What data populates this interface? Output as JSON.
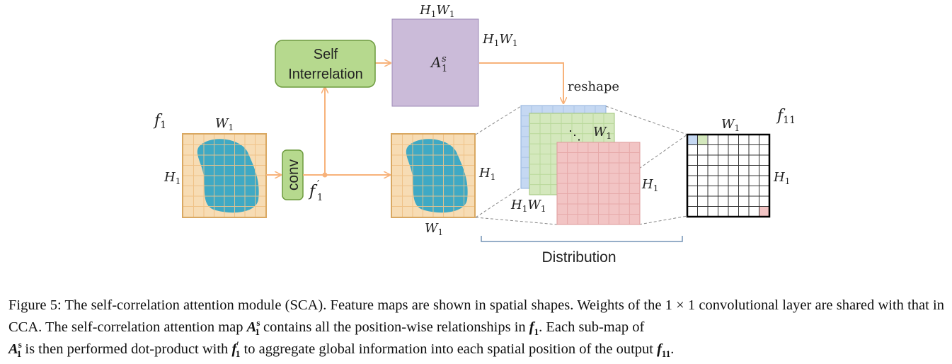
{
  "labels": {
    "f1": "f",
    "f1_sub": "1",
    "w1": "W",
    "w1_sub": "1",
    "h1": "H",
    "h1_sub": "1",
    "f1_prime": "f",
    "f1_prime_sub": "1",
    "f1_prime_sup": "′",
    "conv": "conv",
    "self_interrelation_line1": "Self",
    "self_interrelation_line2": "Interrelation",
    "attention_map": "A",
    "attention_map_sup": "s",
    "attention_map_sub": "1",
    "reshape": "reshape",
    "f11": "f",
    "f11_sub": "11",
    "dots": "⋱",
    "distribution": "Distribution"
  },
  "caption": {
    "prefix": "Figure 5: The self-correlation attention module (SCA). Feature maps are shown in spatial shapes. Weights of the 1 × 1 convolutional layer are shared with that in CCA. The self-correlation attention map ",
    "mid1": " contains all the position-wise relationships in ",
    "mid2": ". Each sub-map of ",
    "mid3": " is then performed dot-product with ",
    "mid4": " to aggregate global information into each spatial position of the output ",
    "suffix": ".",
    "sym_A": "A",
    "sym_A_sup": "s",
    "sym_A_sub": "1",
    "sym_f": "f",
    "sym_f1_sub": "1",
    "sym_f11_sub": "11",
    "sym_prime": "′"
  },
  "colors": {
    "feature_fill": "#f7dcb4",
    "feature_grid": "#e8b870",
    "blob": "#3fa9c4",
    "arrow": "#f7b27a",
    "box_green": "#b6d98e",
    "box_green_border": "#6d9b3f",
    "attention_fill": "#cbbbd9",
    "attention_border": "#9d88b6",
    "slice_blue": "#c5d8f2",
    "slice_green": "#d4e8bd",
    "slice_red": "#f2c4c4",
    "bracket": "#7393b5"
  }
}
